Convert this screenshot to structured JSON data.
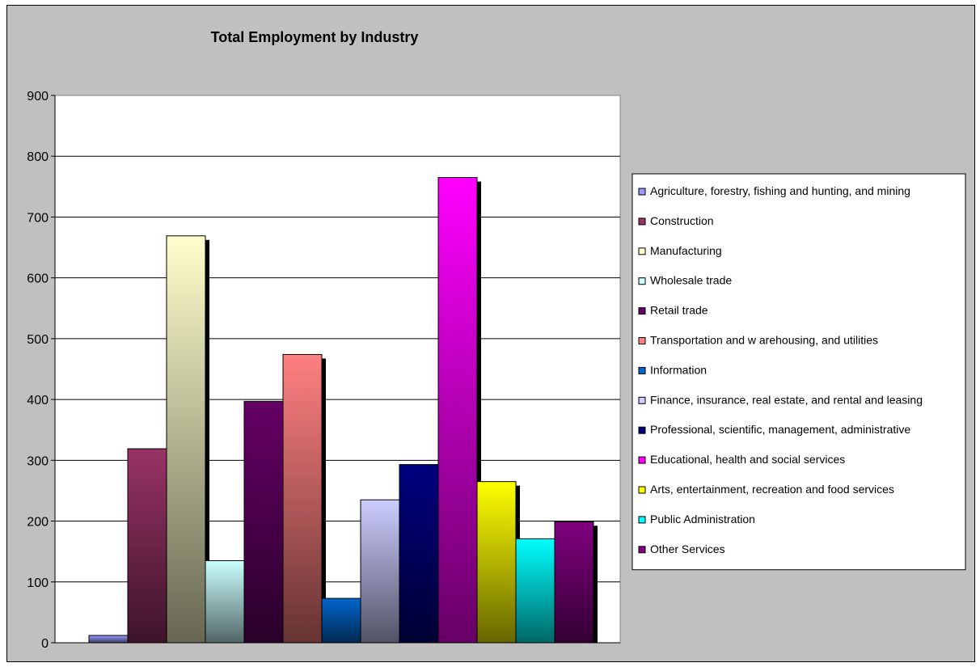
{
  "chart_data": {
    "type": "bar",
    "title": "Total Employment by Industry",
    "xlabel": "",
    "ylabel": "",
    "ylim": [
      0,
      900
    ],
    "yticks": [
      "0",
      "100",
      "200",
      "300",
      "400",
      "500",
      "600",
      "700",
      "800",
      "900"
    ],
    "grid": true,
    "legend_position": "right",
    "series": [
      {
        "name": "Agriculture, forestry, fishing and hunting, and mining",
        "value": 12,
        "color": "#9999ff"
      },
      {
        "name": "Construction",
        "value": 319,
        "color": "#993366"
      },
      {
        "name": "Manufacturing",
        "value": 669,
        "color": "#ffffcc"
      },
      {
        "name": "Wholesale trade",
        "value": 135,
        "color": "#ccffff"
      },
      {
        "name": "Retail trade",
        "value": 397,
        "color": "#660066"
      },
      {
        "name": "Transportation and w arehousing, and utilities",
        "value": 474,
        "color": "#ff8080"
      },
      {
        "name": "Information",
        "value": 73,
        "color": "#0066cc"
      },
      {
        "name": "Finance, insurance, real estate, and rental and leasing",
        "value": 235,
        "color": "#ccccff"
      },
      {
        "name": "Professional, scientific, management, administrative",
        "value": 293,
        "color": "#000080"
      },
      {
        "name": "Educational, health and social services",
        "value": 765,
        "color": "#ff00ff"
      },
      {
        "name": "Arts, entertainment, recreation and food services",
        "value": 265,
        "color": "#ffff00"
      },
      {
        "name": "Public Administration",
        "value": 171,
        "color": "#00ffff"
      },
      {
        "name": "Other Services",
        "value": 199,
        "color": "#800080"
      }
    ]
  }
}
